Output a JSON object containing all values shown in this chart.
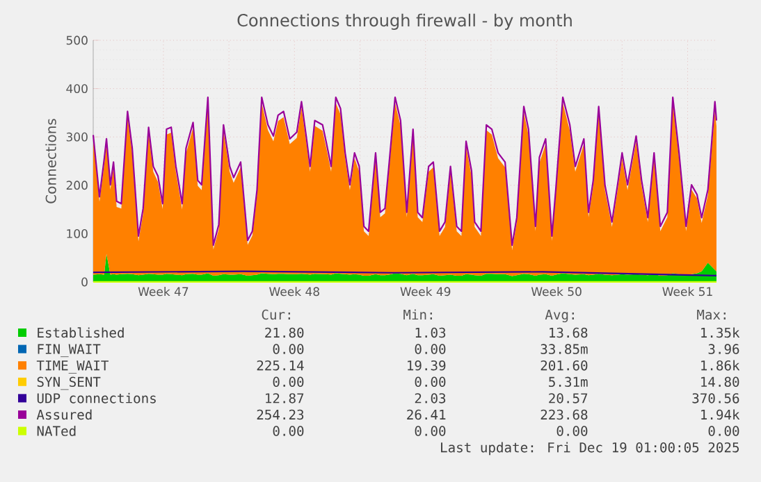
{
  "chart_data": {
    "type": "area",
    "title": "Connections through firewall - by month",
    "ylabel": "Connections",
    "x": [
      "2025-11-15T18:00",
      "2025-11-16T02:00",
      "2025-11-16T08:00",
      "2025-11-16T11:00",
      "2025-11-16T16:00",
      "2025-11-16T20:00",
      "2025-11-17T00:00",
      "2025-11-17T06:00",
      "2025-11-17T14:00",
      "2025-11-17T20:00",
      "2025-11-18T04:00",
      "2025-11-18T10:00",
      "2025-11-18T17:00",
      "2025-11-18T23:00",
      "2025-11-19T05:00",
      "2025-11-19T11:00",
      "2025-11-19T16:00",
      "2025-11-19T22:00",
      "2025-11-20T04:00",
      "2025-11-20T12:00",
      "2025-11-20T17:00",
      "2025-11-21T02:00",
      "2025-11-21T08:00",
      "2025-11-21T13:00",
      "2025-11-21T21:00",
      "2025-11-22T04:00",
      "2025-11-22T11:00",
      "2025-11-22T17:00",
      "2025-11-23T01:00",
      "2025-11-23T06:00",
      "2025-11-23T15:00",
      "2025-11-24T00:00",
      "2025-11-24T06:00",
      "2025-11-24T12:00",
      "2025-11-24T18:00",
      "2025-11-25T02:00",
      "2025-11-25T09:00",
      "2025-11-25T15:00",
      "2025-11-25T22:00",
      "2025-11-26T06:00",
      "2025-11-26T15:00",
      "2025-11-26T21:00",
      "2025-11-27T03:00",
      "2025-11-27T08:00",
      "2025-11-27T14:00",
      "2025-11-28T00:00",
      "2025-11-28T05:00",
      "2025-11-28T11:00",
      "2025-11-28T17:00",
      "2025-11-28T23:00",
      "2025-11-29T05:00",
      "2025-11-29T11:00",
      "2025-11-29T17:00",
      "2025-11-29T23:00",
      "2025-11-30T05:00",
      "2025-11-30T11:00",
      "2025-11-30T20:00",
      "2025-12-01T02:00",
      "2025-12-01T08:00",
      "2025-12-01T13:00",
      "2025-12-01T21:00",
      "2025-12-02T04:00",
      "2025-12-02T12:00",
      "2025-12-02T20:00",
      "2025-12-03T02:00",
      "2025-12-03T08:00",
      "2025-12-03T16:00",
      "2025-12-03T22:00",
      "2025-12-04T06:00",
      "2025-12-04T13:00",
      "2025-12-04T20:00",
      "2025-12-05T04:00",
      "2025-12-05T10:00",
      "2025-12-05T16:00",
      "2025-12-05T23:00",
      "2025-12-06T03:00",
      "2025-12-06T11:00",
      "2025-12-06T18:00",
      "2025-12-07T01:00",
      "2025-12-07T09:00",
      "2025-12-07T18:00",
      "2025-12-08T03:00",
      "2025-12-08T09:00",
      "2025-12-08T18:00",
      "2025-12-09T00:00",
      "2025-12-09T09:00",
      "2025-12-09T14:00",
      "2025-12-09T22:00",
      "2025-12-10T06:00",
      "2025-12-10T11:00",
      "2025-12-10T20:00",
      "2025-12-11T05:00",
      "2025-12-11T12:00",
      "2025-12-11T23:00",
      "2025-12-12T05:00",
      "2025-12-12T11:00",
      "2025-12-12T18:00",
      "2025-12-13T02:00",
      "2025-12-13T11:00",
      "2025-12-13T19:00",
      "2025-12-14T00:00",
      "2025-12-14T07:00",
      "2025-12-14T18:00",
      "2025-12-15T01:00",
      "2025-12-15T09:00",
      "2025-12-15T17:00",
      "2025-12-16T01:00",
      "2025-12-16T10:00",
      "2025-12-16T17:00",
      "2025-12-17T01:00",
      "2025-12-17T10:00",
      "2025-12-17T17:00",
      "2025-12-18T00:00",
      "2025-12-18T06:00",
      "2025-12-18T14:00",
      "2025-12-18T23:00",
      "2025-12-19T01:00"
    ],
    "stacked": true,
    "grid": true,
    "legend": "bottom",
    "xlim": [
      "2025-11-15T18:00",
      "2025-12-19T01:00"
    ],
    "xticks": [
      {
        "value": "2025-11-19T12:00",
        "label": "Week 47"
      },
      {
        "value": "2025-11-23T00:00",
        "label": null
      },
      {
        "value": "2025-11-26T12:00",
        "label": "Week 48"
      },
      {
        "value": "2025-11-30T00:00",
        "label": null
      },
      {
        "value": "2025-12-03T12:00",
        "label": "Week 49"
      },
      {
        "value": "2025-12-07T00:00",
        "label": null
      },
      {
        "value": "2025-12-10T12:00",
        "label": "Week 50"
      },
      {
        "value": "2025-12-14T00:00",
        "label": null
      },
      {
        "value": "2025-12-17T12:00",
        "label": "Week 51"
      }
    ],
    "ylim": [
      0,
      500
    ],
    "yticks": [
      0,
      100,
      200,
      300,
      400,
      500
    ],
    "series": [
      {
        "name": "Established",
        "color": "#00cc00",
        "values": [
          15,
          16,
          15,
          58,
          15,
          16,
          15,
          16,
          17,
          16,
          14,
          15,
          17,
          16,
          15,
          15,
          17,
          16,
          15,
          14,
          16,
          17,
          15,
          15,
          18,
          13,
          14,
          16,
          15,
          15,
          16,
          13,
          14,
          15,
          18,
          17,
          16,
          17,
          17,
          16,
          16,
          17,
          16,
          15,
          17,
          16,
          16,
          15,
          18,
          17,
          16,
          15,
          16,
          15,
          13,
          13,
          16,
          14,
          14,
          15,
          18,
          17,
          14,
          17,
          14,
          14,
          15,
          16,
          13,
          14,
          15,
          13,
          13,
          16,
          15,
          14,
          13,
          17,
          17,
          16,
          16,
          12,
          14,
          17,
          16,
          13,
          15,
          16,
          13,
          15,
          18,
          16,
          15,
          16,
          14,
          15,
          17,
          15,
          14,
          15,
          16,
          15,
          16,
          15,
          14,
          16,
          13,
          14,
          18,
          16,
          13,
          16,
          18,
          22,
          40,
          25,
          22
        ]
      },
      {
        "name": "FIN_WAIT",
        "color": "#0066b3",
        "type": "line",
        "values": [
          null,
          null,
          null,
          null,
          null,
          null,
          null,
          null,
          null,
          null,
          null,
          null,
          null,
          null,
          null,
          null,
          null,
          null,
          null,
          null,
          null,
          null,
          null,
          null,
          null,
          null,
          null,
          null,
          null,
          null,
          null,
          null,
          null,
          null,
          null,
          null,
          null,
          null,
          null,
          null,
          null,
          null,
          null,
          null,
          null,
          null,
          null,
          null,
          null,
          null,
          null,
          null,
          null,
          null,
          null,
          null,
          null,
          null,
          null,
          null,
          null,
          null,
          null,
          null,
          null,
          null,
          null,
          null,
          null,
          null,
          null,
          null,
          null,
          null,
          null,
          null,
          null,
          null,
          null,
          null,
          null,
          null,
          null,
          null,
          null,
          null,
          null,
          null,
          null,
          null,
          null,
          null,
          null,
          null,
          null,
          null,
          null,
          null,
          null,
          null,
          null,
          null,
          null,
          null,
          null,
          null,
          null,
          null,
          null,
          null,
          null,
          null,
          null,
          null,
          null,
          null,
          null
        ]
      },
      {
        "name": "TIME_WAIT",
        "color": "#ff8000",
        "values": [
          282,
          150,
          226,
          228,
          176,
          222,
          140,
          136,
          325,
          250,
          70,
          126,
          292,
          212,
          192,
          136,
          288,
          293,
          212,
          136,
          250,
          302,
          184,
          175,
          352,
          54,
          95,
          297,
          213,
          190,
          221,
          64,
          82,
          166,
          352,
          297,
          275,
          316,
          324,
          269,
          282,
          344,
          275,
          213,
          306,
          297,
          260,
          213,
          352,
          330,
          240,
          175,
          240,
          213,
          92,
          82,
          240,
          120,
          128,
          213,
          352,
          306,
          120,
          288,
          120,
          110,
          213,
          221,
          82,
          100,
          213,
          92,
          82,
          264,
          204,
          100,
          82,
          297,
          288,
          240,
          221,
          54,
          110,
          334,
          288,
          92,
          231,
          269,
          72,
          166,
          352,
          297,
          213,
          269,
          120,
          184,
          334,
          175,
          100,
          184,
          240,
          175,
          275,
          184,
          110,
          240,
          92,
          120,
          352,
          240,
          92,
          175,
          155,
          100,
          140,
          330,
          300
        ]
      },
      {
        "name": "SYN_SENT",
        "color": "#ffcc00",
        "type": "line",
        "values": [
          null,
          null,
          null,
          null,
          null,
          null,
          null,
          null,
          null,
          null,
          null,
          null,
          null,
          null,
          null,
          null,
          null,
          null,
          null,
          null,
          null,
          null,
          null,
          null,
          null,
          null,
          null,
          null,
          null,
          null,
          null,
          null,
          null,
          null,
          null,
          null,
          null,
          null,
          null,
          null,
          null,
          null,
          null,
          null,
          null,
          null,
          null,
          null,
          null,
          null,
          null,
          null,
          null,
          null,
          null,
          null,
          null,
          null,
          null,
          null,
          null,
          null,
          null,
          null,
          null,
          null,
          null,
          null,
          null,
          null,
          null,
          null,
          null,
          null,
          null,
          null,
          null,
          null,
          null,
          null,
          null,
          null,
          null,
          null,
          null,
          null,
          null,
          null,
          null,
          null,
          null,
          null,
          null,
          null,
          null,
          null,
          null,
          null,
          null,
          null,
          null,
          null,
          null,
          null,
          null,
          null,
          null,
          null,
          null,
          null,
          null,
          null,
          null,
          null,
          null,
          null,
          null
        ]
      },
      {
        "name": "UDP connections",
        "color": "#330099",
        "type": "line",
        "x": [
          "2025-11-15T18:00",
          "2025-11-23T18:00",
          "2025-12-01T18:00",
          "2025-12-09T18:00",
          "2025-12-19T01:00"
        ],
        "values": [
          20,
          22,
          19,
          21,
          13
        ]
      },
      {
        "name": "Assured",
        "color": "#990099",
        "type": "line",
        "values": [
          304,
          176,
          253,
          296,
          201,
          248,
          167,
          162,
          353,
          277,
          95,
          152,
          320,
          239,
          219,
          162,
          316,
          320,
          239,
          162,
          277,
          330,
          210,
          201,
          382,
          76,
          119,
          325,
          239,
          216,
          248,
          86,
          105,
          191,
          382,
          325,
          302,
          345,
          353,
          296,
          310,
          373,
          302,
          239,
          334,
          325,
          287,
          239,
          382,
          359,
          267,
          201,
          267,
          239,
          115,
          105,
          267,
          144,
          152,
          239,
          382,
          334,
          144,
          316,
          144,
          133,
          239,
          248,
          105,
          124,
          239,
          115,
          105,
          291,
          230,
          124,
          105,
          325,
          316,
          267,
          248,
          76,
          133,
          363,
          316,
          115,
          258,
          296,
          95,
          191,
          382,
          325,
          239,
          296,
          144,
          210,
          363,
          201,
          124,
          210,
          267,
          201,
          302,
          210,
          133,
          267,
          115,
          144,
          382,
          267,
          115,
          201,
          181,
          133,
          191,
          373,
          334
        ]
      },
      {
        "name": "NATed",
        "color": "#ccff00",
        "type": "line",
        "x": [
          "2025-11-15T18:00",
          "2025-12-19T01:00"
        ],
        "values": [
          0,
          0
        ]
      }
    ],
    "annotations": [
      "Cur:",
      "Min:",
      "Avg:",
      "Max:",
      "21.80",
      "1.03",
      "13.68",
      "1.35k",
      "0.00",
      "0.00",
      "33.85m",
      "3.96",
      "225.14",
      "19.39",
      "201.60",
      "1.86k",
      "0.00",
      "0.00",
      "5.31m",
      "14.80",
      "12.87",
      "2.03",
      "20.57",
      "370.56",
      "254.23",
      "26.41",
      "223.68",
      "1.94k",
      "0.00",
      "0.00",
      "0.00",
      "0.00",
      "Last update: Fri Dec 19 01:00:05 2025"
    ]
  }
}
